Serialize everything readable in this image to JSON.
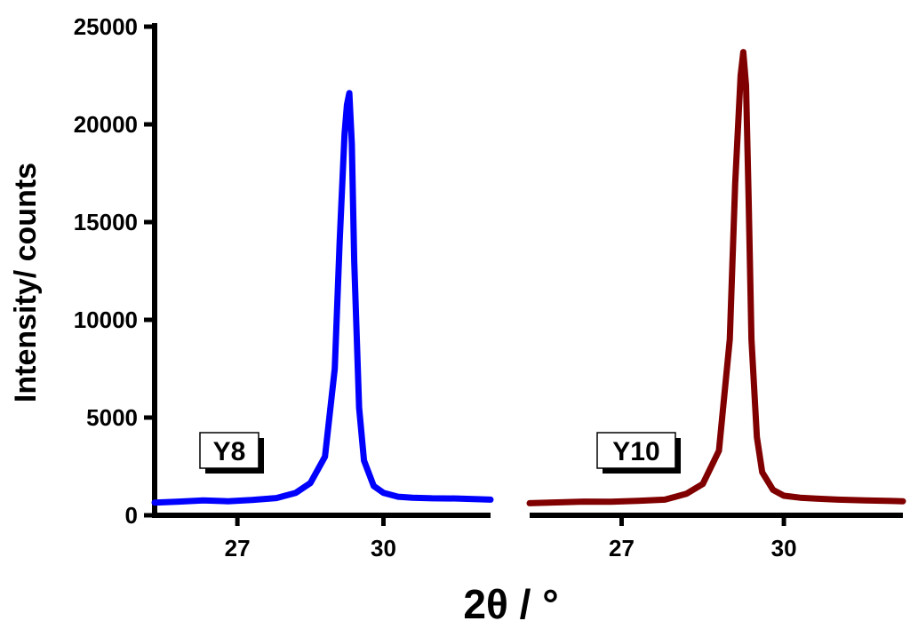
{
  "chart_data": {
    "type": "line",
    "ylabel": "Intensity/ counts",
    "xlabel": "2θ / °",
    "ylim": [
      0,
      25000
    ],
    "yticks": [
      0,
      5000,
      10000,
      15000,
      20000,
      25000
    ],
    "ytick_labels": [
      "0",
      "5000",
      "10000",
      "15000",
      "20000",
      "25000"
    ],
    "panels": [
      {
        "name": "Y8",
        "label": "Y8",
        "color": "#0000ff",
        "xlim": [
          25.3,
          32.2
        ],
        "xticks": [
          27,
          30
        ],
        "xtick_labels": [
          "27",
          "30"
        ],
        "x": [
          25.3,
          25.8,
          26.3,
          26.8,
          27.3,
          27.8,
          28.2,
          28.5,
          28.8,
          29.0,
          29.1,
          29.2,
          29.25,
          29.3,
          29.35,
          29.4,
          29.5,
          29.6,
          29.8,
          30.0,
          30.3,
          30.6,
          31.0,
          31.5,
          32.0,
          32.2
        ],
        "y": [
          650,
          700,
          760,
          720,
          780,
          880,
          1150,
          1650,
          3000,
          7500,
          14000,
          19500,
          21000,
          21600,
          19000,
          13000,
          5500,
          2800,
          1500,
          1150,
          950,
          900,
          870,
          860,
          820,
          800
        ]
      },
      {
        "name": "Y10",
        "label": "Y10",
        "color": "#800000",
        "xlim": [
          25.3,
          32.2
        ],
        "xticks": [
          27,
          30
        ],
        "xtick_labels": [
          "27",
          "30"
        ],
        "x": [
          25.3,
          25.8,
          26.3,
          26.8,
          27.3,
          27.8,
          28.2,
          28.5,
          28.8,
          29.0,
          29.1,
          29.2,
          29.25,
          29.3,
          29.35,
          29.4,
          29.5,
          29.6,
          29.8,
          30.0,
          30.3,
          30.6,
          31.0,
          31.5,
          32.0,
          32.2
        ],
        "y": [
          620,
          660,
          700,
          690,
          740,
          800,
          1100,
          1600,
          3300,
          9000,
          17000,
          22500,
          23700,
          22000,
          16000,
          9000,
          4000,
          2200,
          1300,
          1000,
          900,
          850,
          800,
          760,
          730,
          720
        ]
      }
    ]
  }
}
